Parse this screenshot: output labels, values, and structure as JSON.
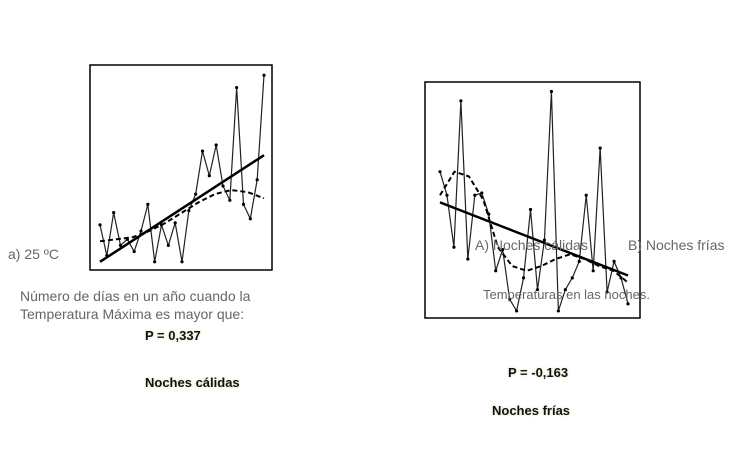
{
  "chart_data": [
    {
      "type": "line",
      "values": [
        22,
        7,
        28,
        12,
        15,
        9,
        19,
        32,
        4,
        22,
        12,
        23,
        4,
        29,
        37,
        58,
        46,
        61,
        41,
        34,
        89,
        32,
        25,
        44,
        95
      ],
      "smooth": [
        14,
        15,
        16,
        19,
        23,
        28,
        33,
        37,
        39,
        38,
        35
      ],
      "trend": [
        4,
        56
      ],
      "ylim": [
        0,
        100
      ]
    },
    {
      "type": "line",
      "values": [
        62,
        52,
        30,
        92,
        25,
        52,
        53,
        44,
        20,
        29,
        8,
        3,
        17,
        46,
        12,
        33,
        96,
        3,
        12,
        17,
        24,
        52,
        20,
        72,
        11,
        24,
        17,
        6
      ],
      "smooth": [
        52,
        62,
        60,
        50,
        30,
        22,
        20,
        22,
        25,
        27,
        25,
        22,
        20,
        15
      ],
      "trend": [
        49,
        18
      ],
      "ylim": [
        0,
        100
      ]
    }
  ],
  "left": {
    "label": "a) 25 ºC",
    "question": [
      "Número de días en un año cuando la",
      "Temperatura Máxima es mayor que:"
    ],
    "p": "P = 0,337",
    "caption": "Noches cálidas"
  },
  "right": {
    "option_a": "A) Noches cálidas",
    "option_b": "B) Noches frías",
    "subtitle": "Temperaturas en las noches.",
    "p": "P = -0,163",
    "caption": "Noches frías"
  }
}
